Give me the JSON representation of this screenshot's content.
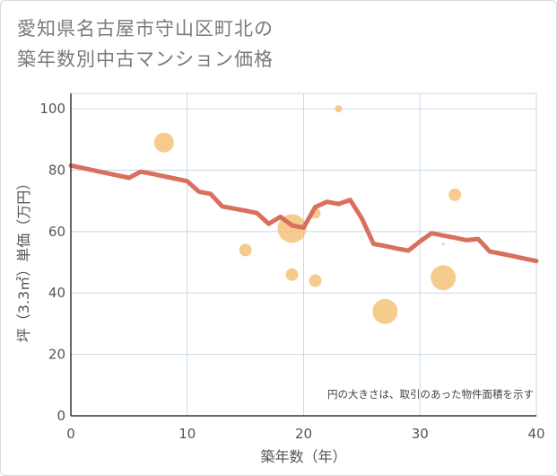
{
  "title_line1": "愛知県名古屋市守山区町北の",
  "title_line2": "築年数別中古マンション価格",
  "chart_data": {
    "type": "scatter",
    "title": "愛知県名古屋市守山区町北の築年数別中古マンション価格",
    "xlabel": "築年数（年）",
    "ylabel": "坪（3.3㎡）単価（万円）",
    "xlim": [
      0,
      40
    ],
    "ylim": [
      0,
      105
    ],
    "xticks": [
      0,
      10,
      20,
      30,
      40
    ],
    "yticks": [
      0,
      20,
      40,
      60,
      80,
      100
    ],
    "grid": true,
    "note": "円の大きさは、取引のあった物件面積を示す",
    "colors": {
      "bubble": "#f5c27a",
      "line": "#d9705e",
      "grid": "#c8d8e6",
      "axis": "#333333"
    },
    "bubbles": [
      {
        "x": 8,
        "y": 89,
        "size": 11
      },
      {
        "x": 15,
        "y": 54,
        "size": 7
      },
      {
        "x": 19,
        "y": 61,
        "size": 16
      },
      {
        "x": 19,
        "y": 46,
        "size": 7
      },
      {
        "x": 21,
        "y": 66,
        "size": 6
      },
      {
        "x": 21,
        "y": 44,
        "size": 7
      },
      {
        "x": 23,
        "y": 100,
        "size": 4
      },
      {
        "x": 27,
        "y": 34,
        "size": 14
      },
      {
        "x": 32,
        "y": 45,
        "size": 14
      },
      {
        "x": 32,
        "y": 56,
        "size": 1.5
      },
      {
        "x": 33,
        "y": 72,
        "size": 7
      }
    ],
    "trend": {
      "x": [
        0,
        1,
        2,
        3,
        4,
        5,
        6,
        7,
        8,
        9,
        10,
        11,
        12,
        13,
        14,
        15,
        16,
        17,
        18,
        19,
        20,
        21,
        22,
        23,
        24,
        25,
        26,
        27,
        28,
        29,
        30,
        31,
        32,
        33,
        34,
        35,
        36,
        37,
        38,
        39,
        40
      ],
      "y": [
        81.5,
        80.7,
        79.9,
        79.1,
        78.3,
        77.5,
        79.5,
        78.8,
        78.0,
        77.2,
        76.4,
        73.0,
        72.3,
        68.2,
        67.5,
        66.8,
        66.0,
        62.5,
        64.8,
        62.0,
        61.3,
        68.0,
        69.7,
        69.0,
        70.3,
        64.3,
        56.0,
        55.3,
        54.5,
        53.8,
        56.8,
        59.5,
        58.7,
        58.0,
        57.2,
        57.6,
        53.5,
        52.8,
        52.0,
        51.2,
        50.4
      ]
    }
  }
}
